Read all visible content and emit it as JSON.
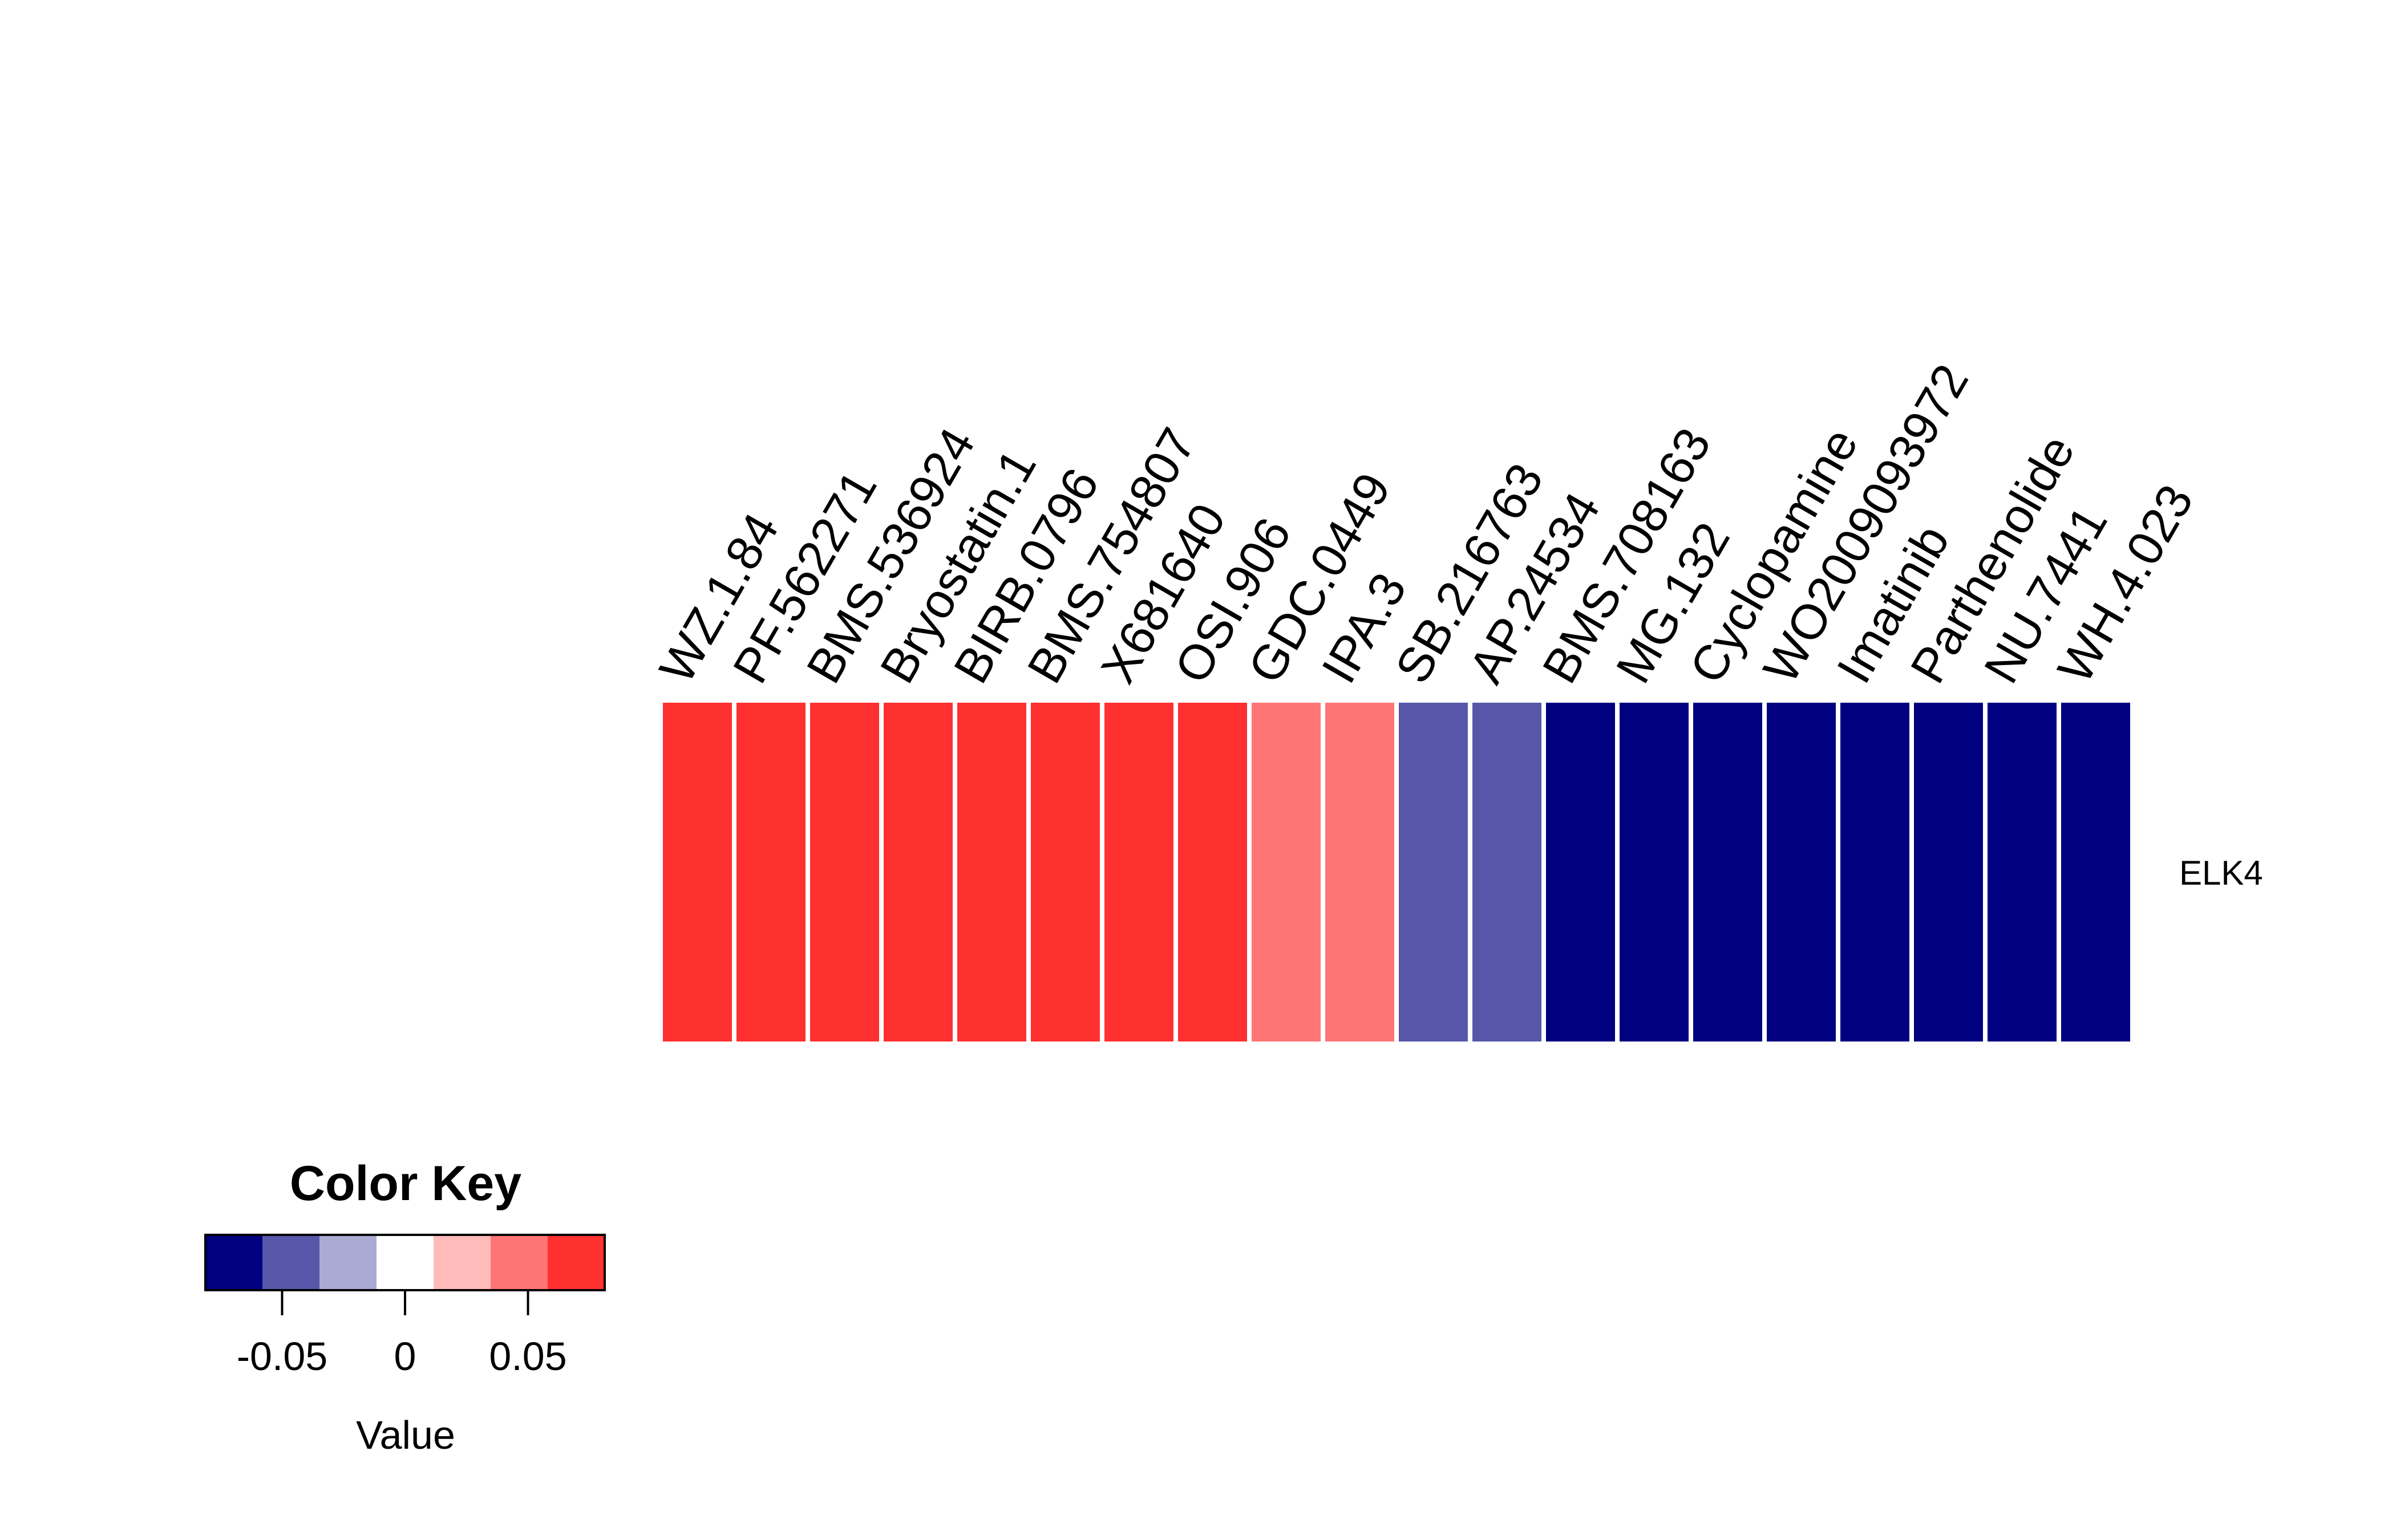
{
  "chart_data": {
    "type": "heatmap",
    "title": "",
    "columns": [
      "WZ.1.84",
      "PF.562271",
      "BMS.536924",
      "Bryostatin.1",
      "BIRB.0796",
      "BMS.754807",
      "X681640",
      "OSI.906",
      "GDC.0449",
      "IPA.3",
      "SB.216763",
      "AP.24534",
      "BMS.708163",
      "MG.132",
      "Cyclopamine",
      "WO2009093972",
      "Imatinib",
      "Parthenolide",
      "NU.7441",
      "WH.4.023"
    ],
    "rows": [
      "ELK4"
    ],
    "values": [
      [
        0.07,
        0.07,
        0.07,
        0.07,
        0.07,
        0.07,
        0.07,
        0.07,
        0.045,
        0.045,
        -0.045,
        -0.045,
        -0.07,
        -0.07,
        -0.07,
        -0.07,
        -0.07,
        -0.07,
        -0.07,
        -0.07
      ]
    ],
    "color_scale": {
      "breaks": [
        -0.0812,
        -0.058,
        -0.0348,
        -0.0116,
        0.0116,
        0.0348,
        0.058,
        0.0812
      ],
      "colors": [
        "#000080",
        "#5757AA",
        "#AAAAD4",
        "#FFFFFF",
        "#FFBABA",
        "#FF7575",
        "#FF3030"
      ]
    },
    "color_key": {
      "title": "Color Key",
      "xlabel": "Value",
      "ticks": [
        -0.05,
        0,
        0.05
      ],
      "tick_labels": [
        "-0.05",
        "0",
        "0.05"
      ],
      "range": [
        -0.0812,
        0.0812
      ]
    }
  }
}
